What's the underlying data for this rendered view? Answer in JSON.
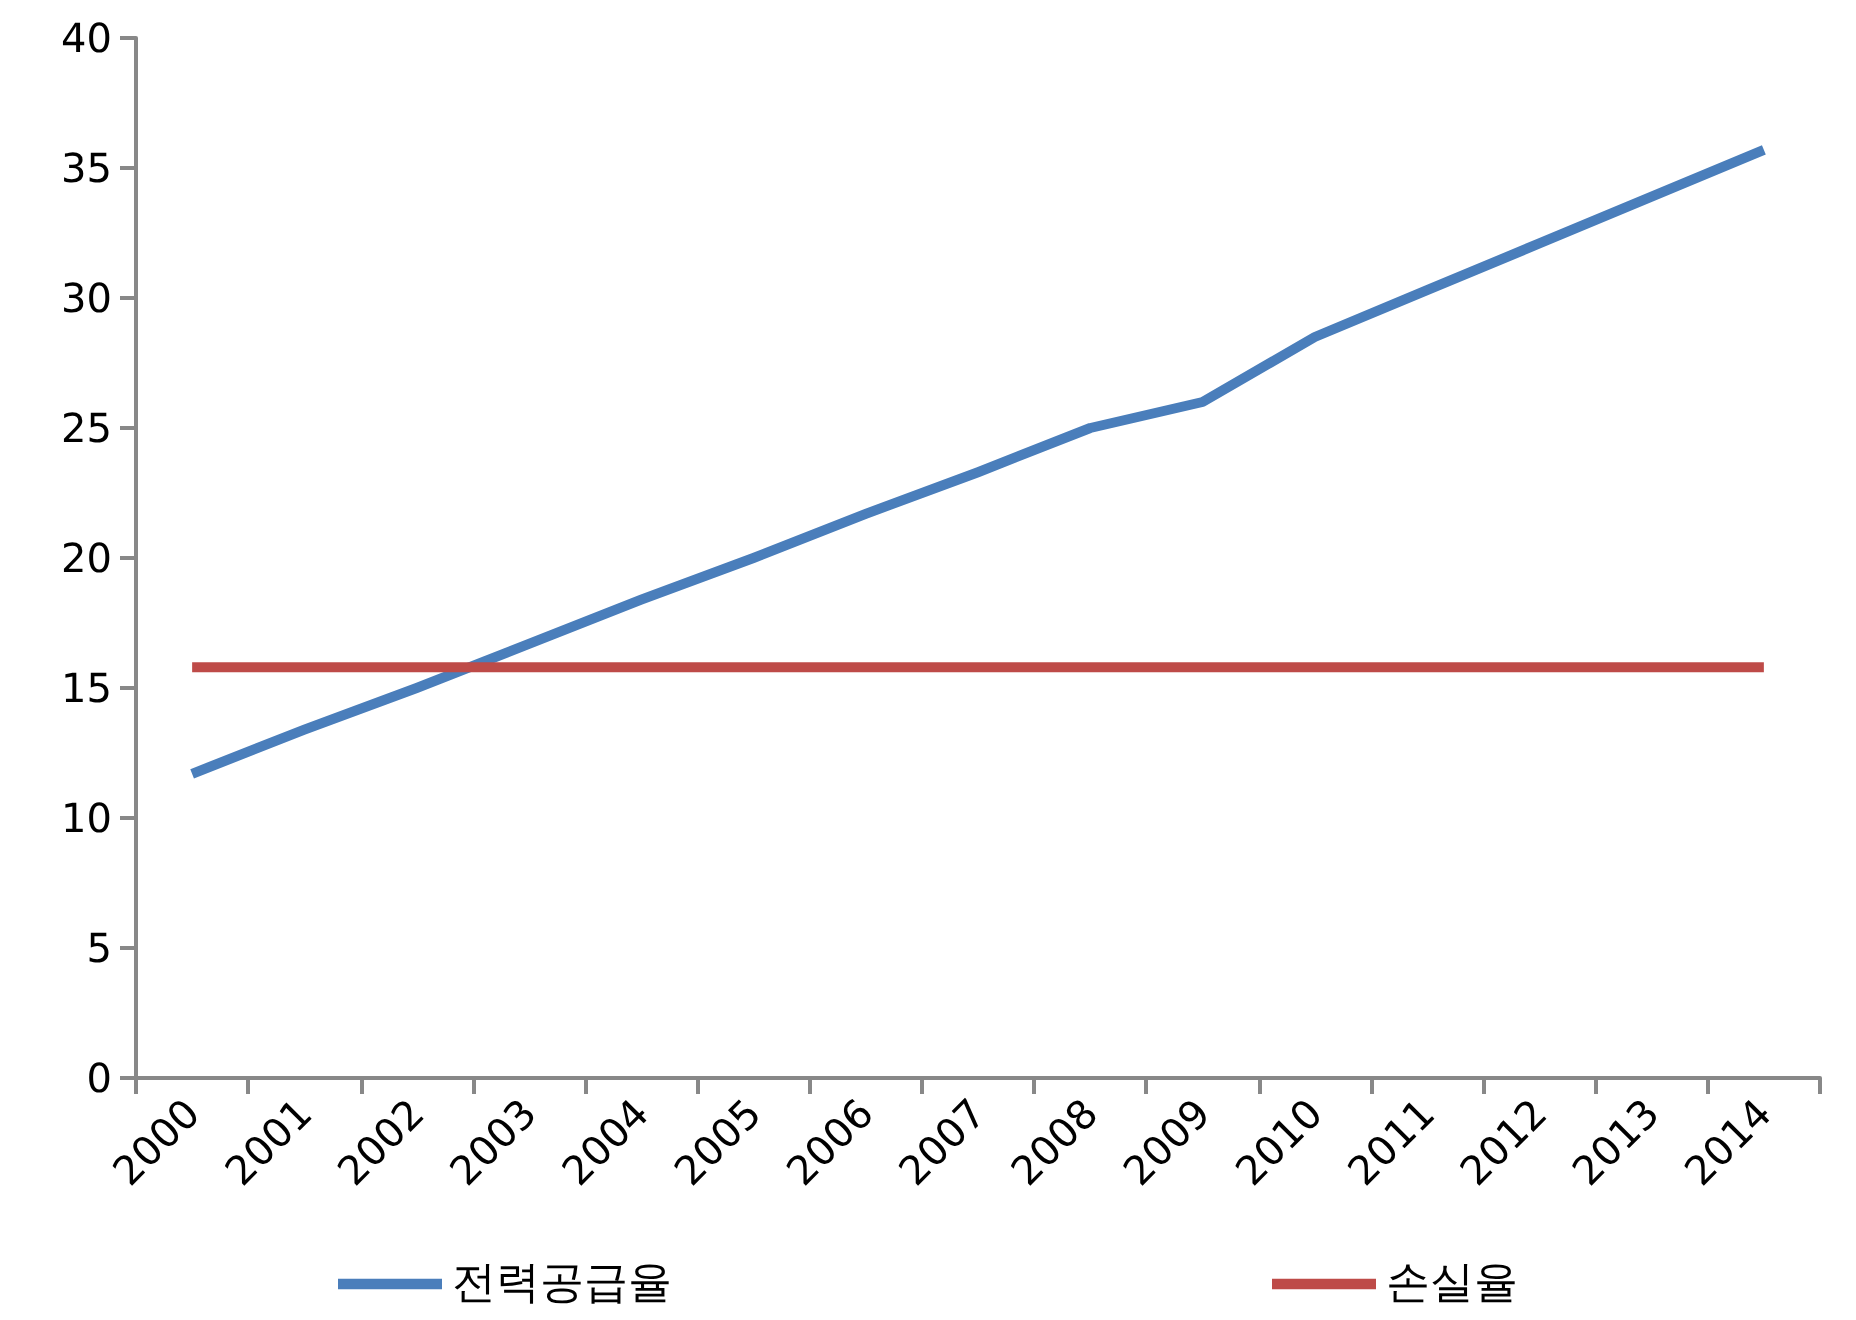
{
  "chart_data": {
    "type": "line",
    "categories": [
      "2000",
      "2001",
      "2002",
      "2003",
      "2004",
      "2005",
      "2006",
      "2007",
      "2008",
      "2009",
      "2010",
      "2011",
      "2012",
      "2013",
      "2014"
    ],
    "series": [
      {
        "name": "전력공급율",
        "color": "#4a7ebb",
        "values": [
          11.7,
          13.4,
          15.0,
          16.7,
          18.4,
          20.0,
          21.7,
          23.3,
          25.0,
          26.0,
          28.5,
          30.3,
          32.1,
          33.9,
          35.7
        ]
      },
      {
        "name": "손실율",
        "color": "#be4b48",
        "values": [
          15.8,
          15.8,
          15.8,
          15.8,
          15.8,
          15.8,
          15.8,
          15.8,
          15.8,
          15.8,
          15.8,
          15.8,
          15.8,
          15.8,
          15.8
        ]
      }
    ],
    "ylim": [
      0,
      40
    ],
    "yticks": [
      0,
      5,
      10,
      15,
      20,
      25,
      30,
      35,
      40
    ],
    "grid": false,
    "legend": "bottom",
    "marker": "none",
    "line_style": "solid"
  }
}
